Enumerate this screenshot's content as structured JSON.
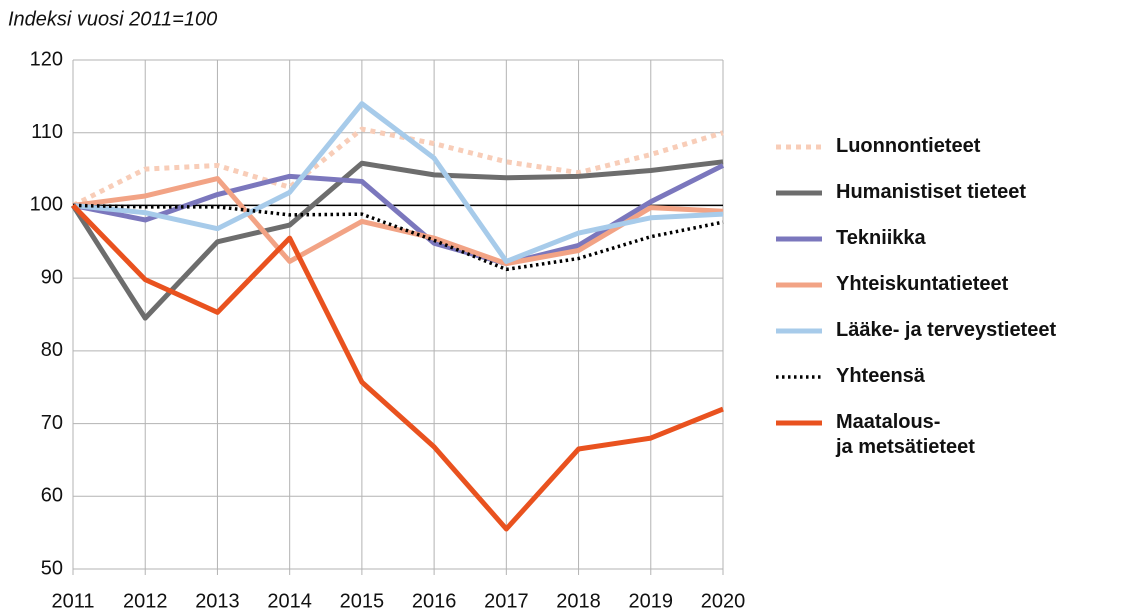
{
  "chart_data": {
    "type": "line",
    "subtitle": "Indeksi vuosi 2011=100",
    "x": [
      2011,
      2012,
      2013,
      2014,
      2015,
      2016,
      2017,
      2018,
      2019,
      2020
    ],
    "xlim": [
      2011,
      2020
    ],
    "xticks": [
      2011,
      2012,
      2013,
      2014,
      2015,
      2016,
      2017,
      2018,
      2019,
      2020
    ],
    "ylim": [
      50,
      120
    ],
    "yticks": [
      50,
      60,
      70,
      80,
      90,
      100,
      110,
      120
    ],
    "reference_line": 100,
    "grid": true,
    "legend": "right",
    "series": [
      {
        "name": "Luonnontieteet",
        "color": "#f8cdb8",
        "dash": "dotted",
        "values": [
          100,
          105,
          105.5,
          102.5,
          110.5,
          108.5,
          106,
          104.5,
          107,
          110
        ]
      },
      {
        "name": "Humanistiset tieteet",
        "color": "#6d6d6d",
        "values": [
          100,
          84.5,
          95,
          97.3,
          105.8,
          104.2,
          103.8,
          104,
          104.8,
          106
        ]
      },
      {
        "name": "Tekniikka",
        "color": "#7b77bd",
        "values": [
          100,
          98,
          101.5,
          104,
          103.3,
          94.8,
          92,
          94.5,
          100.5,
          105.5
        ]
      },
      {
        "name": "Yhteiskuntatieteet",
        "color": "#f2a385",
        "values": [
          100,
          101.3,
          103.7,
          92.3,
          97.8,
          95.5,
          92,
          93.8,
          99.7,
          99.2
        ]
      },
      {
        "name": "Lääke- ja terveystieteet",
        "color": "#a7cbea",
        "values": [
          100,
          99,
          96.8,
          101.8,
          114,
          106.5,
          92.3,
          96.2,
          98.3,
          98.8
        ]
      },
      {
        "name": "Yhteensä",
        "color": "#000000",
        "dash": "dotted",
        "values": [
          100,
          99.8,
          99.8,
          98.7,
          98.8,
          95.2,
          91.2,
          92.7,
          95.7,
          97.7
        ]
      },
      {
        "name": "Maatalous-\nja metsätieteet",
        "color": "#e9521f",
        "values": [
          100,
          89.8,
          85.3,
          95.5,
          75.7,
          66.8,
          55.5,
          66.5,
          68,
          72
        ]
      }
    ]
  }
}
